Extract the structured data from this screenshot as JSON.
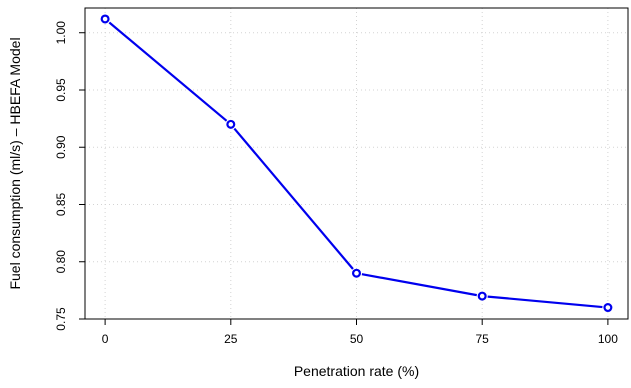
{
  "chart_data": {
    "type": "line",
    "title": "",
    "xlabel": "Penetration rate (%)",
    "ylabel": "Fuel consumption (ml/s) – HBEFA Model",
    "x": [
      0,
      25,
      50,
      75,
      100
    ],
    "series": [
      {
        "values": [
          1.012,
          0.92,
          0.79,
          0.77,
          0.76
        ],
        "color": "#0000ee"
      }
    ],
    "xticks": [
      0,
      25,
      50,
      75,
      100
    ],
    "xtick_labels": [
      "0",
      "25",
      "50",
      "75",
      "100"
    ],
    "yticks": [
      0.75,
      0.8,
      0.85,
      0.9,
      0.95,
      1.0
    ],
    "ytick_labels": [
      "0.75",
      "0.80",
      "0.85",
      "0.90",
      "0.95",
      "1.00"
    ],
    "xlim": [
      -4,
      104
    ],
    "ylim": [
      0.75,
      1.0216
    ],
    "grid": true,
    "grid_color": "#d3d3d3",
    "marker": "open-circle"
  }
}
